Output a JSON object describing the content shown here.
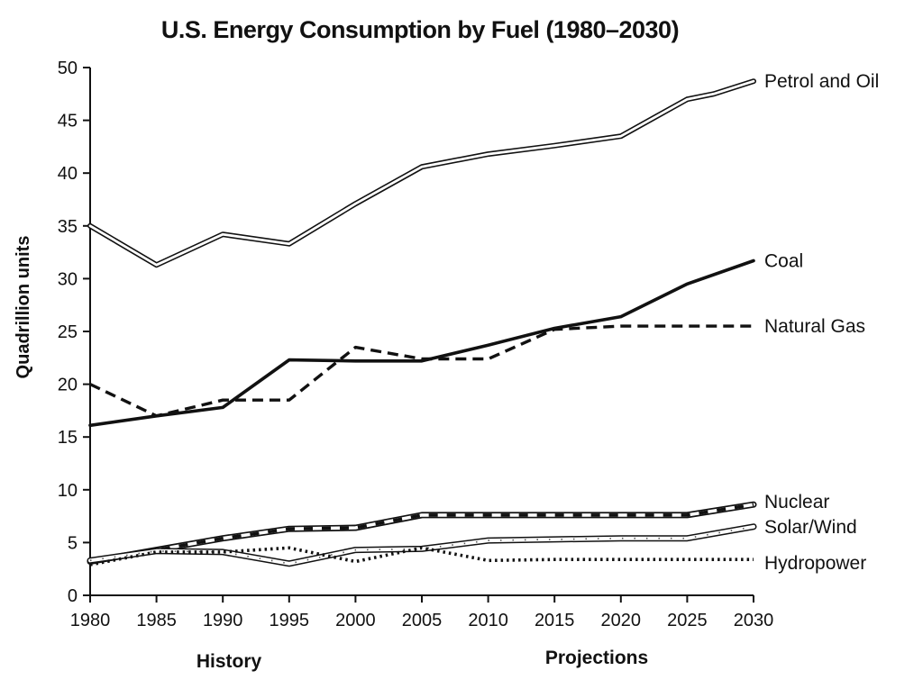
{
  "chart_data": {
    "type": "line",
    "title": "U.S. Energy Consumption by Fuel (1980–2030)",
    "ylabel": "Quadrillion units",
    "xlabel": "",
    "ylim": [
      0,
      50
    ],
    "xlim": [
      1980,
      2030
    ],
    "y_ticks": [
      "0",
      "5",
      "10",
      "15",
      "20",
      "25",
      "30",
      "35",
      "40",
      "45",
      "50"
    ],
    "x_ticks": [
      "1980",
      "1985",
      "1990",
      "1995",
      "2000",
      "2005",
      "2010",
      "2015",
      "2020",
      "2025",
      "2030"
    ],
    "grid": false,
    "legend": "labels at line ends",
    "region_labels": [
      "History",
      "Projections"
    ],
    "series": [
      {
        "name": "Petrol and Oil",
        "style": "double",
        "x": [
          1980,
          1985,
          1990,
          1995,
          2000,
          2005,
          2010,
          2015,
          2020,
          2025,
          2027,
          2030
        ],
        "y": [
          35,
          31.3,
          34.2,
          33.3,
          37.1,
          40.6,
          41.8,
          42.6,
          43.5,
          47.0,
          47.5,
          48.7
        ]
      },
      {
        "name": "Coal",
        "style": "solid",
        "x": [
          1980,
          1985,
          1990,
          1995,
          2000,
          2005,
          2010,
          2015,
          2020,
          2025,
          2030
        ],
        "y": [
          16.1,
          17.0,
          17.8,
          22.3,
          22.2,
          22.2,
          23.7,
          25.3,
          26.4,
          29.5,
          31.7
        ]
      },
      {
        "name": "Natural Gas",
        "style": "dashed",
        "x": [
          1980,
          1985,
          1990,
          1995,
          2000,
          2005,
          2010,
          2015,
          2020,
          2025,
          2030
        ],
        "y": [
          20.0,
          17.0,
          18.5,
          18.5,
          23.5,
          22.4,
          22.4,
          25.2,
          25.5,
          25.5,
          25.5
        ]
      },
      {
        "name": "Nuclear",
        "style": "double-dashed",
        "x": [
          1980,
          1985,
          1990,
          1995,
          2000,
          2005,
          2010,
          2015,
          2020,
          2025,
          2030
        ],
        "y": [
          3.2,
          4.3,
          5.4,
          6.3,
          6.4,
          7.6,
          7.6,
          7.6,
          7.6,
          7.6,
          8.6
        ]
      },
      {
        "name": "Solar/Wind",
        "style": "double-hatched",
        "x": [
          1980,
          1985,
          1990,
          1995,
          2000,
          2005,
          2010,
          2015,
          2020,
          2025,
          2030
        ],
        "y": [
          3.3,
          4.2,
          4.1,
          3.0,
          4.3,
          4.4,
          5.2,
          5.3,
          5.4,
          5.4,
          6.5
        ]
      },
      {
        "name": "Hydropower",
        "style": "dotted",
        "x": [
          1980,
          1985,
          1990,
          1995,
          2000,
          2005,
          2010,
          2015,
          2020,
          2025,
          2030
        ],
        "y": [
          2.9,
          4.1,
          4.1,
          4.5,
          3.2,
          4.5,
          3.3,
          3.4,
          3.4,
          3.4,
          3.4
        ]
      }
    ]
  }
}
